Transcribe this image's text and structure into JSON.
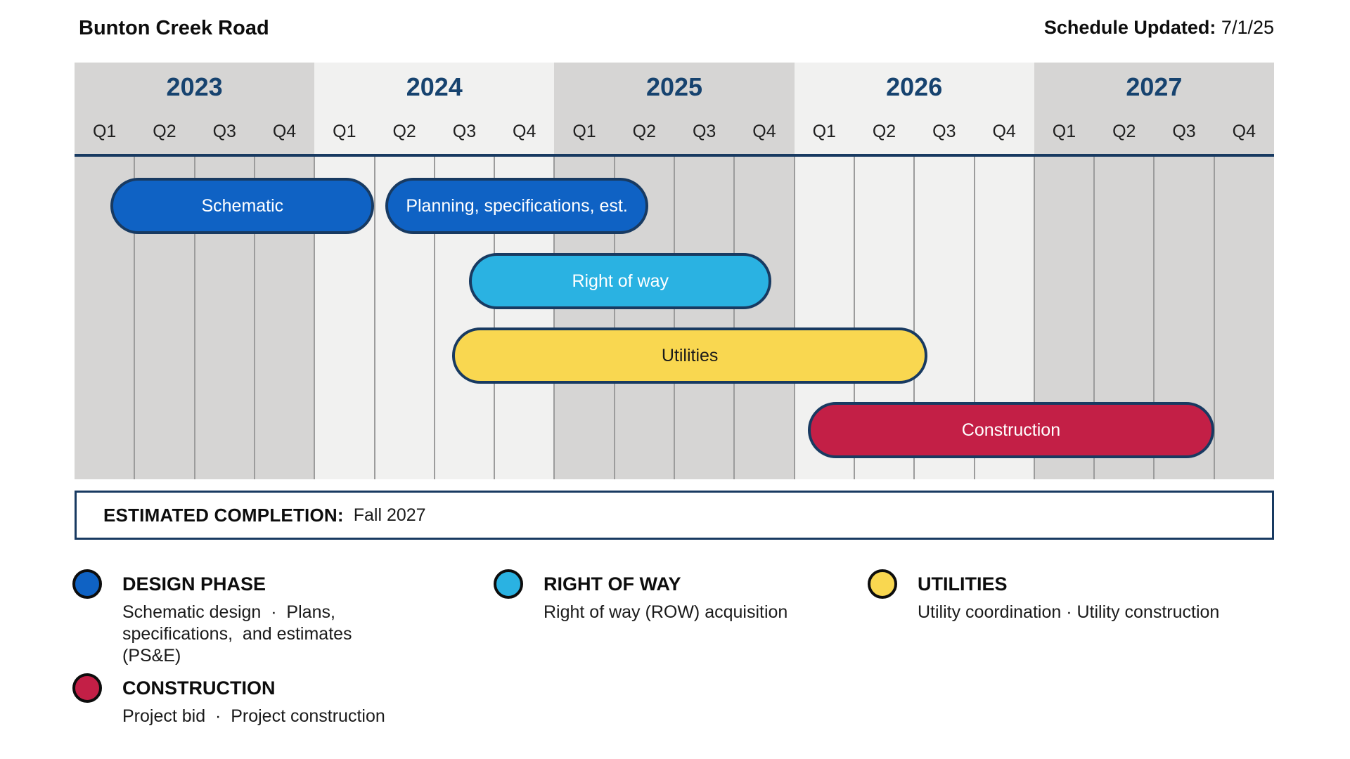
{
  "header": {
    "title": "Bunton Creek Road",
    "schedule_label": "Schedule Updated:",
    "schedule_value": " 7/1/25"
  },
  "colors": {
    "navy": "#183a61",
    "year_text": "#17436f",
    "band_dark": "#d6d5d4",
    "band_light": "#f1f1f0",
    "gridline": "#9c9c9c",
    "design": "#0f62c4",
    "right_of_way": "#2ab2e2",
    "utilities": "#f9d750",
    "construction": "#c31f46",
    "legend_circle_border": "#0d0d0d"
  },
  "chart_data": {
    "type": "bar",
    "subtype": "gantt-timeline",
    "title": "Bunton Creek Road",
    "years": [
      {
        "label": "2023",
        "quarters": [
          "Q1",
          "Q2",
          "Q3",
          "Q4"
        ],
        "shade": "dark"
      },
      {
        "label": "2024",
        "quarters": [
          "Q1",
          "Q2",
          "Q3",
          "Q4"
        ],
        "shade": "light"
      },
      {
        "label": "2025",
        "quarters": [
          "Q1",
          "Q2",
          "Q3",
          "Q4"
        ],
        "shade": "dark"
      },
      {
        "label": "2026",
        "quarters": [
          "Q1",
          "Q2",
          "Q3",
          "Q4"
        ],
        "shade": "light"
      },
      {
        "label": "2027",
        "quarters": [
          "Q1",
          "Q2",
          "Q3",
          "Q4"
        ],
        "shade": "dark"
      }
    ],
    "axis_unit": "quarters from start of 2023 (20 quarters total shown)",
    "tasks": [
      {
        "label": "Schematic",
        "phase": "design",
        "row": 0,
        "start_q": 0.6,
        "end_q": 5.0,
        "start_text": "mid Q1 2023",
        "end_text": "end Q1 2024",
        "label_color": "#ffffff"
      },
      {
        "label": "Planning, specifications, est.",
        "phase": "design",
        "row": 0,
        "start_q": 5.18,
        "end_q": 9.57,
        "start_text": "Q2 2024",
        "end_text": "mid Q2 2025",
        "label_color": "#ffffff"
      },
      {
        "label": "Right of way",
        "phase": "right_of_way",
        "row": 1,
        "start_q": 6.58,
        "end_q": 11.62,
        "start_text": "mid Q3 2024",
        "end_text": "mid Q4 2025",
        "label_color": "#ffffff"
      },
      {
        "label": "Utilities",
        "phase": "utilities",
        "row": 2,
        "start_q": 6.3,
        "end_q": 14.22,
        "start_text": "Q3 2024",
        "end_text": "Q3 2026",
        "label_color": "#1a1a1a"
      },
      {
        "label": "Construction",
        "phase": "construction",
        "row": 3,
        "start_q": 12.23,
        "end_q": 19.0,
        "start_text": "Q1 2026",
        "end_text": "end Q3 2027",
        "label_color": "#ffffff"
      }
    ]
  },
  "completion": {
    "label": "ESTIMATED COMPLETION:",
    "value": "Fall 2027"
  },
  "legend": [
    {
      "title": "DESIGN PHASE",
      "description": "Schematic design  ·  Plans,\nspecifications,  and estimates (PS&E)",
      "phase": "design",
      "col": 0,
      "row": 0
    },
    {
      "title": "RIGHT OF WAY",
      "description": "Right of way (ROW) acquisition",
      "phase": "right_of_way",
      "col": 1,
      "row": 0
    },
    {
      "title": "UTILITIES",
      "description": "Utility coordination · Utility construction",
      "phase": "utilities",
      "col": 2,
      "row": 0
    },
    {
      "title": "CONSTRUCTION",
      "description": "Project bid  ·  Project construction",
      "phase": "construction",
      "col": 0,
      "row": 1
    }
  ]
}
